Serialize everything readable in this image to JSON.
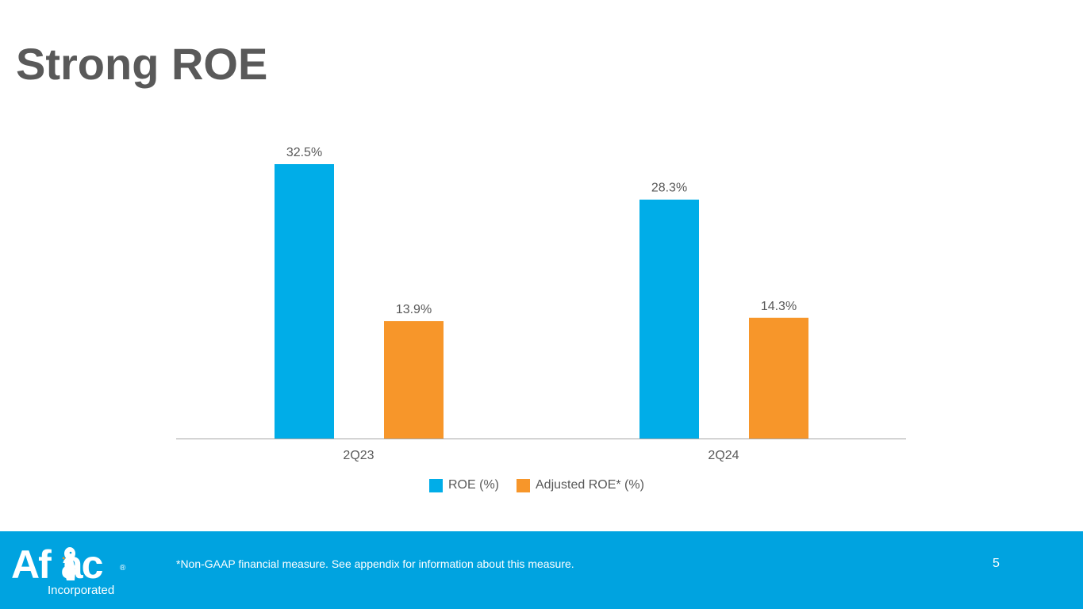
{
  "slide": {
    "title": "Strong ROE",
    "footnote": "*Non-GAAP financial measure. See appendix for information about this measure.",
    "page_number": "5"
  },
  "logo": {
    "brand": "Aflac",
    "registered": "®",
    "subtitle": "Incorporated"
  },
  "colors": {
    "roe": "#00ADE8",
    "adjusted_roe": "#F7962A",
    "footer": "#00A3E0",
    "text": "#595959"
  },
  "chart_data": {
    "type": "bar",
    "title": "",
    "xlabel": "",
    "ylabel": "",
    "categories": [
      "2Q23",
      "2Q24"
    ],
    "series": [
      {
        "name": "ROE (%)",
        "values": [
          32.5,
          28.3
        ],
        "labels": [
          "32.5%",
          "28.3%"
        ],
        "color": "#00ADE8"
      },
      {
        "name": "Adjusted ROE* (%)",
        "values": [
          13.9,
          14.3
        ],
        "labels": [
          "13.9%",
          "14.3%"
        ],
        "color": "#F7962A"
      }
    ],
    "ylim": [
      0,
      35
    ],
    "grid": false,
    "legend": "bottom-center"
  }
}
